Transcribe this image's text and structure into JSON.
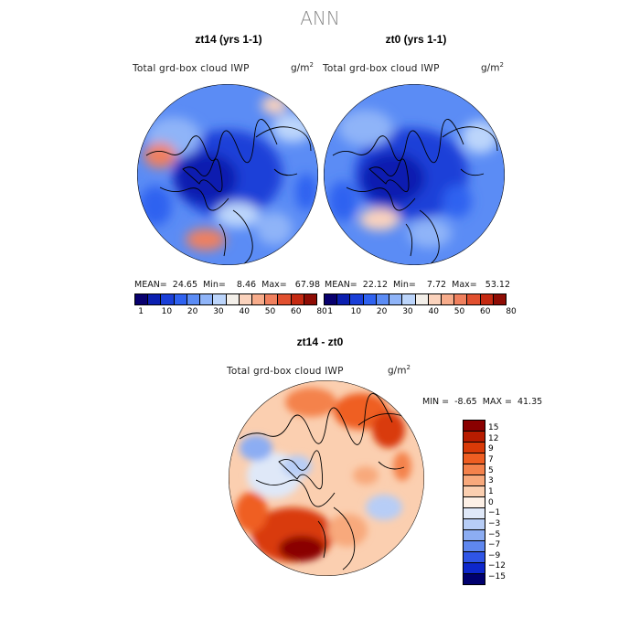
{
  "main_title": "ANN",
  "panels": [
    {
      "title": "zt14 (yrs 1-1)",
      "variable": "Total grd-box cloud IWP",
      "units": "g/m",
      "units_exp": "2",
      "stats": "MEAN=  24.65  Min=    8.46  Max=   67.98"
    },
    {
      "title": "zt0 (yrs 1-1)",
      "variable": "Total grd-box cloud IWP",
      "units": "g/m",
      "units_exp": "2",
      "stats": "MEAN=  22.12  Min=    7.72  Max=   53.12"
    }
  ],
  "colorbar": {
    "colors": [
      "#08006e",
      "#0b1fb0",
      "#1a3fd8",
      "#2f62f0",
      "#5b8cf5",
      "#8fb4f8",
      "#bcd5fb",
      "#f3efe9",
      "#fbd3bd",
      "#f7ac8b",
      "#f0805e",
      "#e1502f",
      "#c52a12",
      "#8e0c04"
    ],
    "tick_labels": [
      "1",
      "10",
      "20",
      "30",
      "40",
      "50",
      "60",
      "80"
    ]
  },
  "diff_panel": {
    "title": "zt14 - zt0",
    "variable": "Total grd-box cloud IWP",
    "units": "g/m",
    "units_exp": "2",
    "stats": "MIN =  -8.65  MAX =  41.35",
    "colorbar_colors": [
      "#8a0000",
      "#b81c00",
      "#d93a08",
      "#ef5e22",
      "#f4824c",
      "#f8a97c",
      "#fbcfb0",
      "#fdf0e6",
      "#dfe8f8",
      "#b7cdf6",
      "#8cadf3",
      "#5f87ef",
      "#2f55e6",
      "#0d27cc",
      "#00006e"
    ],
    "colorbar_labels": [
      "15",
      "12",
      "9",
      "7",
      "5",
      "3",
      "1",
      "0",
      "−1",
      "−3",
      "−5",
      "−7",
      "−9",
      "−12",
      "−15"
    ]
  }
}
